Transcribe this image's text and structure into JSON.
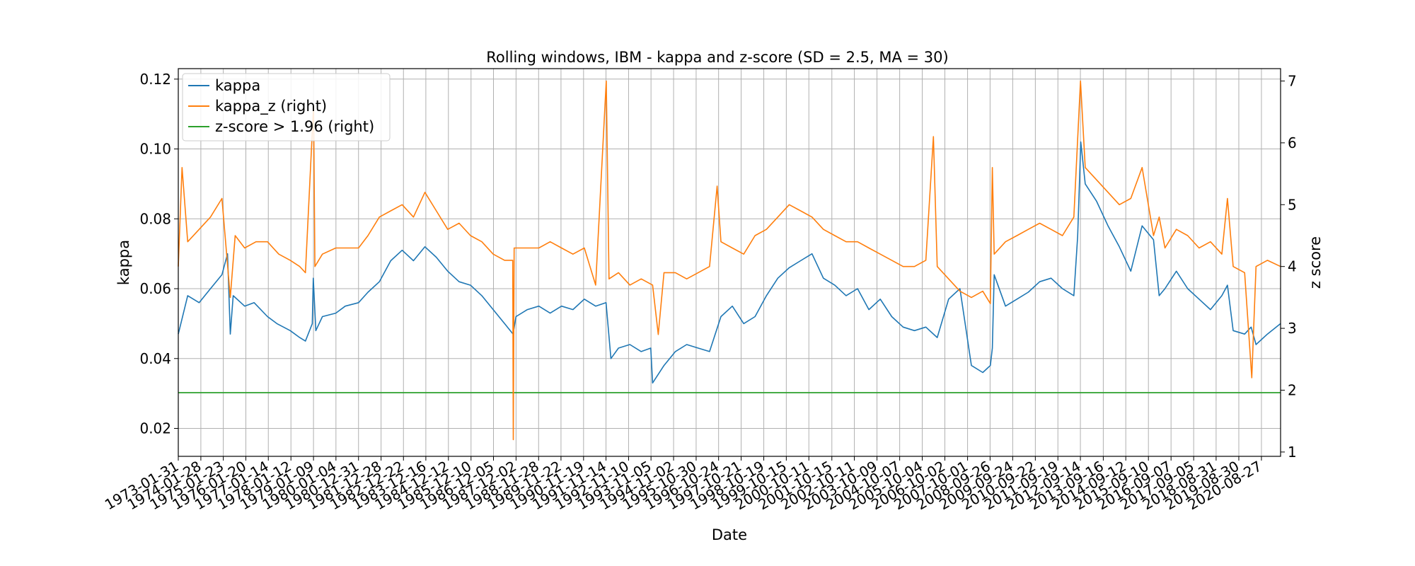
{
  "chart_data": {
    "type": "line",
    "title": "Rolling windows, IBM - kappa and z-score (SD = 2.5, MA = 30)",
    "xlabel": "Date",
    "ylabel": "kappa",
    "ylabel_right": "z score",
    "ylim": [
      0.012,
      0.123
    ],
    "ylim_right": [
      0.93,
      7.2
    ],
    "y_ticks": [
      "0.02",
      "0.04",
      "0.06",
      "0.08",
      "0.10",
      "0.12"
    ],
    "y_ticks_right": [
      "1",
      "2",
      "3",
      "4",
      "5",
      "6",
      "7"
    ],
    "x_ticks": [
      "1973-01-31",
      "1974-01-28",
      "1975-01-23",
      "1976-01-20",
      "1977-01-14",
      "1978-01-12",
      "1979-01-09",
      "1980-01-04",
      "1980-12-31",
      "1981-12-28",
      "1982-12-22",
      "1983-12-16",
      "1984-12-12",
      "1985-12-10",
      "1986-12-05",
      "1987-12-02",
      "1988-11-28",
      "1989-11-22",
      "1990-11-19",
      "1991-11-14",
      "1992-11-10",
      "1993-11-05",
      "1994-11-02",
      "1995-10-30",
      "1996-10-24",
      "1997-10-21",
      "1998-10-19",
      "1999-10-15",
      "2000-10-11",
      "2001-10-15",
      "2002-10-11",
      "2003-10-09",
      "2004-10-07",
      "2005-10-04",
      "2006-10-02",
      "2007-10-01",
      "2008-09-26",
      "2009-09-24",
      "2010-09-22",
      "2011-09-19",
      "2012-09-14",
      "2013-09-16",
      "2014-09-12",
      "2015-09-10",
      "2016-09-07",
      "2017-09-05",
      "2018-08-31",
      "2019-08-30",
      "2020-08-27"
    ],
    "x_start": "1973-01-31",
    "x_end": "2021-06-30",
    "grid": true,
    "legend_position": "top-left",
    "series": [
      {
        "name": "kappa",
        "axis": "left",
        "color": "#1f77b4",
        "x": [
          "1973-01-31",
          "1973-07-01",
          "1974-01-01",
          "1974-07-01",
          "1975-01-01",
          "1975-04-01",
          "1975-05-15",
          "1975-07-01",
          "1976-01-01",
          "1976-06-01",
          "1977-01-01",
          "1977-06-01",
          "1978-01-01",
          "1978-06-01",
          "1978-09-01",
          "1978-12-20",
          "1979-01-05",
          "1979-02-15",
          "1979-06-01",
          "1980-01-01",
          "1980-06-01",
          "1981-01-01",
          "1981-06-01",
          "1981-12-01",
          "1982-06-01",
          "1982-12-01",
          "1983-06-01",
          "1983-12-01",
          "1984-06-01",
          "1984-12-01",
          "1985-06-01",
          "1985-12-01",
          "1986-06-01",
          "1986-12-01",
          "1987-06-01",
          "1987-10-15",
          "1987-12-01",
          "1988-06-01",
          "1988-12-01",
          "1989-06-01",
          "1989-12-01",
          "1990-06-01",
          "1990-12-01",
          "1991-06-01",
          "1991-11-15",
          "1992-02-01",
          "1992-06-01",
          "1992-12-01",
          "1993-06-01",
          "1993-11-01",
          "1993-12-01",
          "1994-06-01",
          "1994-12-01",
          "1995-06-01",
          "1995-12-01",
          "1996-06-01",
          "1996-12-01",
          "1997-06-01",
          "1997-12-01",
          "1998-06-01",
          "1998-12-01",
          "1999-06-01",
          "1999-12-01",
          "2000-06-01",
          "2000-12-01",
          "2001-06-01",
          "2001-12-01",
          "2002-06-01",
          "2002-12-01",
          "2003-06-01",
          "2003-12-01",
          "2004-06-01",
          "2004-12-01",
          "2005-06-01",
          "2005-12-01",
          "2006-06-01",
          "2006-12-01",
          "2007-06-01",
          "2007-12-01",
          "2008-06-01",
          "2008-10-01",
          "2008-11-01",
          "2008-12-01",
          "2009-06-01",
          "2009-12-01",
          "2010-06-01",
          "2010-12-01",
          "2011-06-01",
          "2011-12-01",
          "2012-06-01",
          "2012-08-01",
          "2012-09-20",
          "2012-12-01",
          "2013-06-01",
          "2013-12-01",
          "2014-06-01",
          "2014-12-01",
          "2015-06-01",
          "2015-12-01",
          "2016-03-01",
          "2016-06-01",
          "2016-12-01",
          "2017-06-01",
          "2017-12-01",
          "2018-06-01",
          "2018-12-01",
          "2019-03-01",
          "2019-06-01",
          "2019-12-01",
          "2020-03-15",
          "2020-06-01",
          "2020-12-01",
          "2021-06-30"
        ],
        "y": [
          0.047,
          0.058,
          0.056,
          0.06,
          0.064,
          0.07,
          0.047,
          0.058,
          0.055,
          0.056,
          0.052,
          0.05,
          0.048,
          0.046,
          0.045,
          0.05,
          0.063,
          0.048,
          0.052,
          0.053,
          0.055,
          0.056,
          0.059,
          0.062,
          0.068,
          0.071,
          0.068,
          0.072,
          0.069,
          0.065,
          0.062,
          0.061,
          0.058,
          0.054,
          0.05,
          0.047,
          0.052,
          0.054,
          0.055,
          0.053,
          0.055,
          0.054,
          0.057,
          0.055,
          0.056,
          0.04,
          0.043,
          0.044,
          0.042,
          0.043,
          0.033,
          0.038,
          0.042,
          0.044,
          0.043,
          0.042,
          0.052,
          0.055,
          0.05,
          0.052,
          0.058,
          0.063,
          0.066,
          0.068,
          0.07,
          0.063,
          0.061,
          0.058,
          0.06,
          0.054,
          0.057,
          0.052,
          0.049,
          0.048,
          0.049,
          0.046,
          0.057,
          0.06,
          0.038,
          0.036,
          0.038,
          0.043,
          0.064,
          0.055,
          0.057,
          0.059,
          0.062,
          0.063,
          0.06,
          0.058,
          0.075,
          0.102,
          0.09,
          0.085,
          0.078,
          0.072,
          0.065,
          0.078,
          0.074,
          0.058,
          0.06,
          0.065,
          0.06,
          0.057,
          0.054,
          0.058,
          0.061,
          0.048,
          0.047,
          0.049,
          0.044,
          0.047,
          0.05
        ]
      },
      {
        "name": "kappa_z (right)",
        "axis": "right",
        "color": "#ff7f0e",
        "x": [
          "1973-01-31",
          "1973-04-01",
          "1973-07-01",
          "1974-01-01",
          "1974-07-01",
          "1975-01-01",
          "1975-05-15",
          "1975-08-01",
          "1976-01-01",
          "1976-07-01",
          "1977-01-01",
          "1977-07-01",
          "1978-01-01",
          "1978-06-01",
          "1978-09-01",
          "1979-01-10",
          "1979-02-01",
          "1979-06-01",
          "1980-01-01",
          "1980-06-01",
          "1981-01-01",
          "1981-06-01",
          "1981-12-01",
          "1982-06-01",
          "1982-12-01",
          "1983-06-01",
          "1983-12-01",
          "1984-06-01",
          "1984-12-01",
          "1985-06-01",
          "1985-12-01",
          "1986-06-01",
          "1986-12-01",
          "1987-06-01",
          "1987-10-10",
          "1987-10-19",
          "1987-11-01",
          "1988-06-01",
          "1988-12-01",
          "1989-06-01",
          "1989-12-01",
          "1990-06-01",
          "1990-12-01",
          "1991-06-01",
          "1991-11-18",
          "1992-01-01",
          "1992-06-01",
          "1992-12-01",
          "1993-06-01",
          "1993-12-01",
          "1994-03-01",
          "1994-06-01",
          "1994-12-01",
          "1995-06-01",
          "1995-12-01",
          "1996-06-01",
          "1996-10-01",
          "1996-12-01",
          "1997-06-01",
          "1997-12-01",
          "1998-06-01",
          "1998-12-01",
          "1999-06-01",
          "1999-12-01",
          "2000-06-01",
          "2000-12-01",
          "2001-06-01",
          "2001-12-01",
          "2002-06-01",
          "2002-12-01",
          "2003-06-01",
          "2003-12-01",
          "2004-06-01",
          "2004-12-01",
          "2005-06-01",
          "2005-12-01",
          "2006-04-01",
          "2006-06-01",
          "2006-12-01",
          "2007-06-01",
          "2007-12-01",
          "2008-06-01",
          "2008-10-01",
          "2008-11-01",
          "2008-12-01",
          "2009-06-01",
          "2009-12-01",
          "2010-06-01",
          "2010-12-01",
          "2011-06-01",
          "2011-12-01",
          "2012-06-01",
          "2012-09-15",
          "2012-12-01",
          "2013-06-01",
          "2013-12-01",
          "2014-06-01",
          "2014-12-01",
          "2015-06-01",
          "2015-12-01",
          "2016-03-01",
          "2016-06-01",
          "2016-12-01",
          "2017-06-01",
          "2017-12-01",
          "2018-06-01",
          "2018-12-01",
          "2019-03-01",
          "2019-06-01",
          "2019-12-01",
          "2020-03-25",
          "2020-06-01",
          "2020-12-01",
          "2021-06-30"
        ],
        "y": [
          4.0,
          5.6,
          4.4,
          4.6,
          4.8,
          5.1,
          3.5,
          4.5,
          4.3,
          4.4,
          4.4,
          4.2,
          4.1,
          4.0,
          3.9,
          6.6,
          4.0,
          4.2,
          4.3,
          4.3,
          4.3,
          4.5,
          4.8,
          4.9,
          5.0,
          4.8,
          5.2,
          4.9,
          4.6,
          4.7,
          4.5,
          4.4,
          4.2,
          4.1,
          4.1,
          1.2,
          4.3,
          4.3,
          4.3,
          4.4,
          4.3,
          4.2,
          4.3,
          3.7,
          7.0,
          3.8,
          3.9,
          3.7,
          3.8,
          3.7,
          2.9,
          3.9,
          3.9,
          3.8,
          3.9,
          4.0,
          5.3,
          4.4,
          4.3,
          4.2,
          4.5,
          4.6,
          4.8,
          5.0,
          4.9,
          4.8,
          4.6,
          4.5,
          4.4,
          4.4,
          4.3,
          4.2,
          4.1,
          4.0,
          4.0,
          4.1,
          6.1,
          4.0,
          3.8,
          3.6,
          3.5,
          3.6,
          3.4,
          5.6,
          4.2,
          4.4,
          4.5,
          4.6,
          4.7,
          4.6,
          4.5,
          4.8,
          7.0,
          5.6,
          5.4,
          5.2,
          5.0,
          5.1,
          5.6,
          4.5,
          4.8,
          4.3,
          4.6,
          4.5,
          4.3,
          4.4,
          4.2,
          5.1,
          4.0,
          3.9,
          2.2,
          4.0,
          4.1,
          4.0
        ]
      },
      {
        "name": "z-score > 1.96 (right)",
        "axis": "right",
        "color": "#2ca02c",
        "x": [
          "1973-01-31",
          "2021-06-30"
        ],
        "y": [
          1.96,
          1.96
        ]
      }
    ]
  }
}
